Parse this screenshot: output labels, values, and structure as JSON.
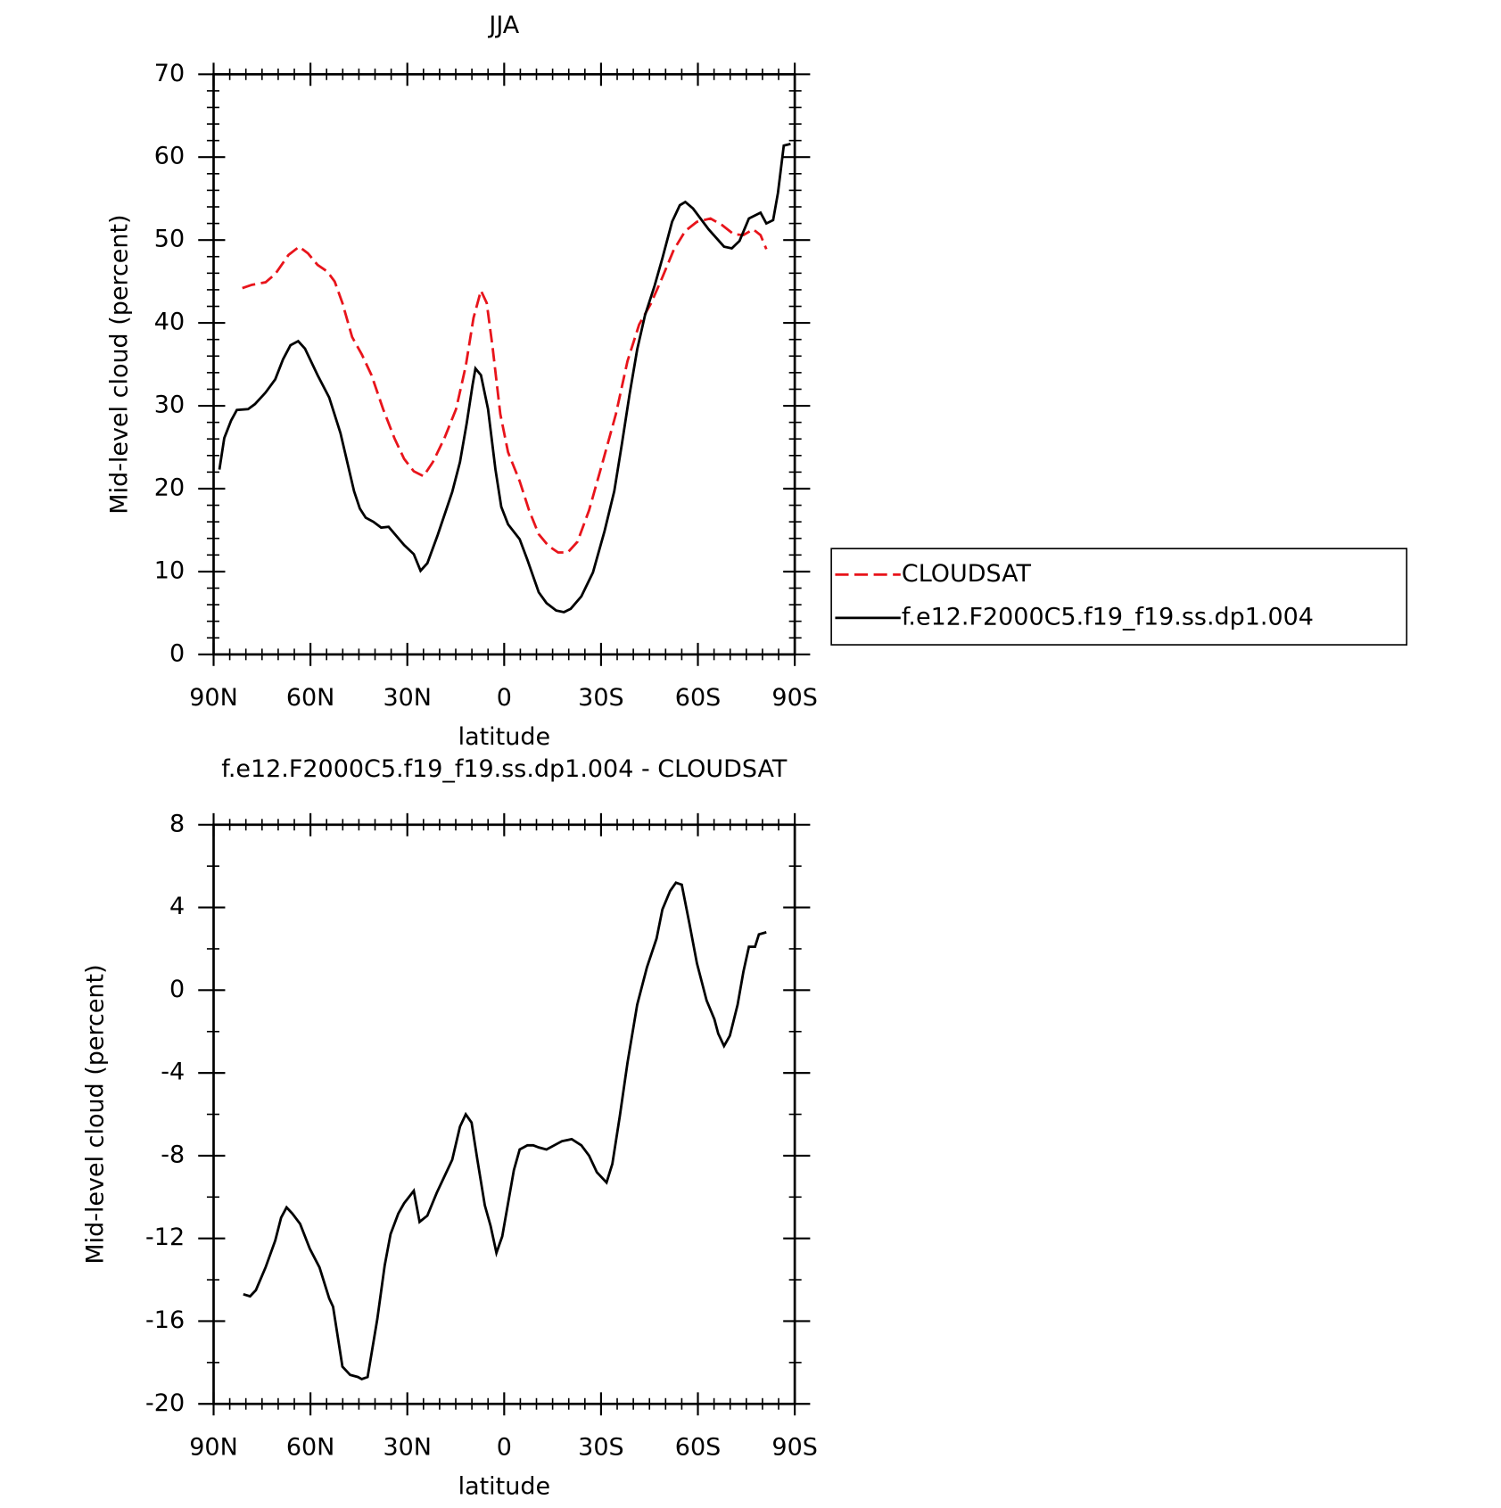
{
  "chart_data": [
    {
      "type": "line",
      "title": "JJA",
      "xlabel": "latitude",
      "ylabel": "Mid-level cloud (percent)",
      "xlim": [
        90,
        -90
      ],
      "xticks": [
        {
          "value": 90,
          "label": "90N"
        },
        {
          "value": 60,
          "label": "60N"
        },
        {
          "value": 30,
          "label": "30N"
        },
        0,
        {
          "value": -30,
          "label": "30S"
        },
        {
          "value": -60,
          "label": "60S"
        },
        {
          "value": -90,
          "label": "90S"
        }
      ],
      "xminorticks": [
        85,
        80,
        75,
        70,
        65,
        55,
        50,
        45,
        40,
        35,
        25,
        20,
        15,
        10,
        5,
        -5,
        -10,
        -15,
        -20,
        -25,
        -35,
        -40,
        -45,
        -50,
        -55,
        -65,
        -70,
        -75,
        -80,
        -85
      ],
      "ylim": [
        0,
        70
      ],
      "yticks": [
        0,
        10,
        20,
        30,
        40,
        50,
        60,
        70
      ],
      "yminorticks": [
        2,
        4,
        6,
        8,
        12,
        14,
        16,
        18,
        22,
        24,
        26,
        28,
        32,
        34,
        36,
        38,
        42,
        44,
        46,
        48,
        52,
        54,
        56,
        58,
        62,
        64,
        66,
        68
      ],
      "legend": "right",
      "series": [
        {
          "name": "CLOUDSAT",
          "color": "#e8141b",
          "dash": true,
          "x": [
            81.1,
            78.1,
            73.9,
            70.9,
            66.8,
            63.5,
            60.8,
            57.8,
            54.8,
            52.5,
            50.1,
            47.1,
            44.1,
            41.1,
            37.5,
            34.0,
            31.0,
            28.0,
            25.0,
            22.1,
            18.5,
            14.9,
            11.9,
            9.5,
            7.2,
            5.4,
            3.6,
            1.2,
            -1.2,
            -4.8,
            -7.7,
            -10.7,
            -13.7,
            -16.7,
            -19.7,
            -22.7,
            -26.3,
            -30.5,
            -34.6,
            -38.2,
            -41.8,
            -45.4,
            -49.0,
            -52.5,
            -56.1,
            -59.7,
            -63.9,
            -67.5,
            -71.1,
            -74.1,
            -77.1,
            -79.4,
            -81.2
          ],
          "values": [
            44.2,
            44.6,
            44.9,
            45.9,
            48.2,
            49.2,
            48.4,
            47.0,
            46.2,
            45.0,
            42.4,
            38.3,
            36.2,
            33.7,
            29.6,
            26.1,
            23.6,
            22.1,
            21.5,
            23.2,
            26.1,
            29.6,
            34.8,
            40.6,
            43.9,
            42.4,
            37.1,
            29.0,
            24.4,
            20.9,
            17.4,
            14.5,
            13.1,
            12.3,
            12.3,
            13.6,
            17.4,
            23.2,
            29.0,
            35.4,
            39.8,
            42.3,
            45.5,
            48.8,
            51.1,
            52.2,
            52.6,
            51.8,
            50.7,
            50.6,
            51.3,
            50.6,
            48.9
          ]
        },
        {
          "name": "f.e12.F2000C5.f19_f19.ss.dp1.004",
          "color": "#000000",
          "dash": false,
          "x": [
            88.2,
            86.7,
            84.6,
            82.8,
            79.3,
            77.2,
            73.9,
            70.9,
            68.5,
            66.2,
            63.8,
            61.7,
            57.8,
            54.2,
            50.7,
            46.5,
            44.7,
            42.9,
            40.5,
            38.1,
            35.8,
            31.0,
            28.0,
            25.9,
            23.8,
            20.6,
            16.1,
            13.7,
            11.6,
            9.8,
            8.9,
            7.2,
            5.0,
            2.7,
            0.9,
            -1.2,
            -4.8,
            -7.2,
            -10.7,
            -13.1,
            -16.1,
            -18.5,
            -20.6,
            -23.9,
            -27.5,
            -31.1,
            -34.1,
            -36.5,
            -38.8,
            -41.2,
            -43.6,
            -46.6,
            -49.0,
            -52.0,
            -54.4,
            -56.1,
            -58.5,
            -63.3,
            -68.1,
            -70.5,
            -72.9,
            -75.8,
            -79.4,
            -81.2,
            -83.3,
            -84.8,
            -86.6,
            -88.7
          ],
          "values": [
            22.3,
            26.1,
            28.2,
            29.5,
            29.6,
            30.2,
            31.6,
            33.2,
            35.6,
            37.3,
            37.8,
            36.9,
            33.7,
            31.0,
            26.7,
            19.7,
            17.6,
            16.5,
            16.0,
            15.3,
            15.4,
            13.2,
            12.1,
            10.1,
            11.0,
            14.4,
            19.6,
            23.2,
            27.9,
            32.5,
            34.5,
            33.7,
            29.6,
            22.3,
            17.8,
            15.7,
            13.9,
            11.4,
            7.5,
            6.2,
            5.3,
            5.1,
            5.5,
            7.0,
            9.9,
            14.9,
            19.7,
            25.5,
            31.3,
            36.8,
            40.9,
            44.5,
            47.8,
            52.2,
            54.2,
            54.6,
            53.8,
            51.3,
            49.2,
            49.0,
            49.9,
            52.6,
            53.3,
            52.0,
            52.4,
            55.7,
            61.4,
            61.6
          ]
        }
      ]
    },
    {
      "type": "line",
      "title": "f.e12.F2000C5.f19_f19.ss.dp1.004 - CLOUDSAT",
      "xlabel": "latitude",
      "ylabel": "Mid-level cloud (percent)",
      "xlim": [
        90,
        -90
      ],
      "xticks": [
        {
          "value": 90,
          "label": "90N"
        },
        {
          "value": 60,
          "label": "60N"
        },
        {
          "value": 30,
          "label": "30N"
        },
        0,
        {
          "value": -30,
          "label": "30S"
        },
        {
          "value": -60,
          "label": "60S"
        },
        {
          "value": -90,
          "label": "90S"
        }
      ],
      "xminorticks": [
        85,
        80,
        75,
        70,
        65,
        55,
        50,
        45,
        40,
        35,
        25,
        20,
        15,
        10,
        5,
        -5,
        -10,
        -15,
        -20,
        -25,
        -35,
        -40,
        -45,
        -50,
        -55,
        -65,
        -70,
        -75,
        -80,
        -85
      ],
      "ylim": [
        -20,
        8
      ],
      "yticks": [
        -20,
        -16,
        -12,
        -8,
        -4,
        0,
        4,
        8
      ],
      "yminorticks": [
        -18,
        -14,
        -10,
        -6,
        -2,
        2,
        6
      ],
      "series": [
        {
          "color": "#000000",
          "dash": false,
          "x": [
            80.8,
            78.7,
            76.9,
            73.9,
            70.9,
            69.1,
            67.4,
            65.6,
            63.2,
            60.2,
            57.2,
            54.2,
            53.0,
            51.3,
            50.1,
            47.7,
            45.3,
            44.1,
            42.3,
            39.3,
            37.0,
            35.2,
            32.8,
            31.0,
            28.0,
            26.2,
            23.8,
            20.9,
            18.5,
            16.1,
            13.7,
            11.9,
            10.1,
            8.3,
            6.0,
            4.2,
            2.4,
            0.6,
            -1.2,
            -3.0,
            -4.8,
            -7.2,
            -9.0,
            -10.7,
            -13.1,
            -15.5,
            -17.9,
            -20.9,
            -23.9,
            -26.3,
            -28.7,
            -31.7,
            -33.5,
            -35.8,
            -38.2,
            -41.2,
            -44.2,
            -47.2,
            -49.0,
            -51.4,
            -53.2,
            -55.0,
            -57.4,
            -59.7,
            -62.7,
            -65.1,
            -66.3,
            -68.1,
            -69.9,
            -72.3,
            -74.1,
            -75.8,
            -77.7,
            -78.9,
            -81.2
          ],
          "values": [
            -14.7,
            -14.8,
            -14.5,
            -13.4,
            -12.1,
            -11.0,
            -10.5,
            -10.8,
            -11.3,
            -12.5,
            -13.4,
            -14.9,
            -15.3,
            -17.0,
            -18.2,
            -18.6,
            -18.7,
            -18.8,
            -18.7,
            -15.9,
            -13.3,
            -11.8,
            -10.8,
            -10.3,
            -9.7,
            -11.2,
            -10.9,
            -9.8,
            -9.0,
            -8.2,
            -6.6,
            -6.0,
            -6.4,
            -8.2,
            -10.4,
            -11.4,
            -12.7,
            -11.9,
            -10.3,
            -8.7,
            -7.7,
            -7.5,
            -7.5,
            -7.6,
            -7.7,
            -7.5,
            -7.3,
            -7.2,
            -7.5,
            -8.0,
            -8.8,
            -9.3,
            -8.4,
            -6.1,
            -3.5,
            -0.7,
            1.1,
            2.5,
            3.9,
            4.8,
            5.2,
            5.1,
            3.2,
            1.3,
            -0.5,
            -1.4,
            -2.1,
            -2.7,
            -2.2,
            -0.7,
            0.9,
            2.1,
            2.1,
            2.7,
            2.8
          ]
        }
      ]
    }
  ]
}
